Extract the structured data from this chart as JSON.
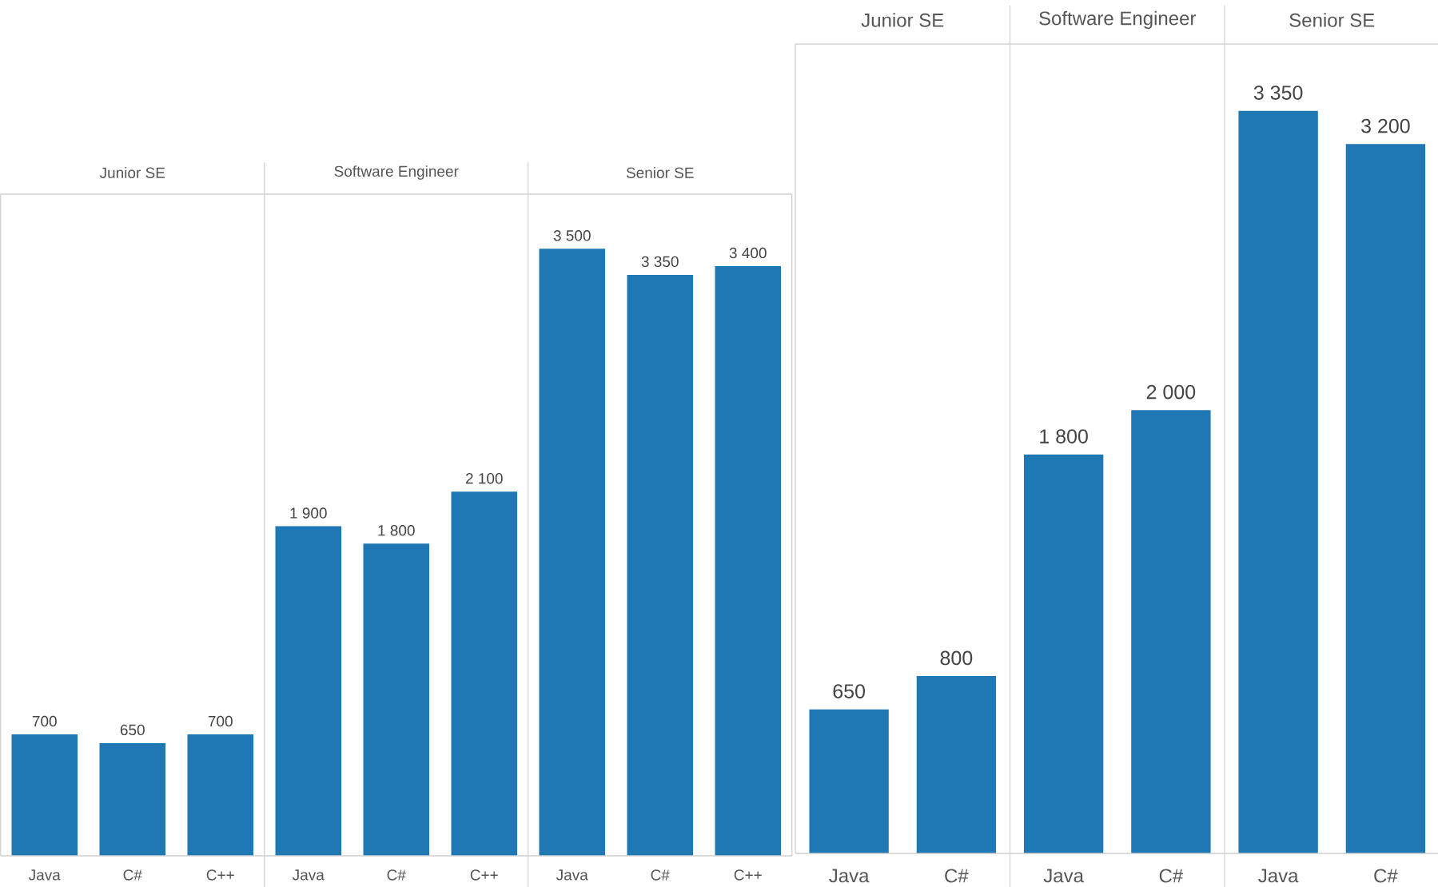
{
  "chart_data": [
    {
      "type": "bar",
      "title": "Junior SE",
      "categories": [
        "Java",
        "C#",
        "C++"
      ],
      "values": [
        700,
        650,
        700
      ],
      "value_labels": [
        "700",
        "650",
        "700"
      ],
      "color": "#1f77b4"
    },
    {
      "type": "bar",
      "title": "Software Engineer",
      "categories": [
        "Java",
        "C#",
        "C++"
      ],
      "values": [
        1900,
        1800,
        2100
      ],
      "value_labels": [
        "1 900",
        "1 800",
        "2 100"
      ],
      "color": "#1f77b4"
    },
    {
      "type": "bar",
      "title": "Senior SE",
      "categories": [
        "Java",
        "C#",
        "C++"
      ],
      "values": [
        3500,
        3350,
        3400
      ],
      "value_labels": [
        "3 500",
        "3 350",
        "3 400"
      ],
      "color": "#1f77b4"
    },
    {
      "type": "bar",
      "title": "Junior SE",
      "categories": [
        "Java",
        "C#"
      ],
      "values": [
        650,
        800
      ],
      "value_labels": [
        "650",
        "800"
      ],
      "color": "#1f77b4"
    },
    {
      "type": "bar",
      "title": "Software Engineer",
      "categories": [
        "Java",
        "C#"
      ],
      "values": [
        1800,
        2000
      ],
      "value_labels": [
        "1 800",
        "2 000"
      ],
      "color": "#1f77b4"
    },
    {
      "type": "bar",
      "title": "Senior SE",
      "categories": [
        "Java",
        "C#"
      ],
      "values": [
        3350,
        3200
      ],
      "value_labels": [
        "3 350",
        "3 200"
      ],
      "color": "#1f77b4"
    }
  ]
}
